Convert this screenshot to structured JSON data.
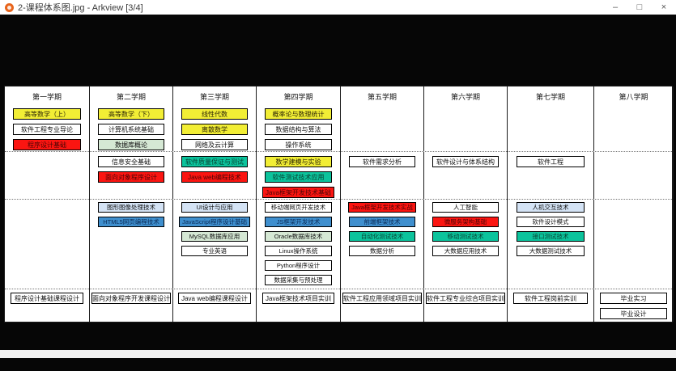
{
  "window": {
    "title": "2-课程体系图.jpg - Arkview [3/4]",
    "minimize_glyph": "–",
    "maximize_glyph": "□",
    "close_glyph": "×"
  },
  "colors": {
    "app_icon": "#e8641b",
    "yellow": "#f2ee35",
    "red": "#fb1511",
    "teal": "#0cc39c",
    "blue": "#3f8fce",
    "pale_green": "#d5e8d4",
    "pale_blue": "#d4e3f5",
    "white": "#ffffff"
  },
  "diagram": {
    "columns": [
      {
        "header": "第一学期",
        "sections": [
          [
            {
              "label": "高等数学（上）",
              "color": "yellow"
            },
            {
              "label": "软件工程专业导论",
              "color": "white"
            },
            {
              "label": "程序设计基础",
              "color": "red"
            }
          ],
          [],
          [],
          [
            {
              "label": "程序设计基础课程设计",
              "color": "white"
            }
          ]
        ]
      },
      {
        "header": "第二学期",
        "sections": [
          [
            {
              "label": "高等数学（下）",
              "color": "yellow"
            },
            {
              "label": "计算机系统基础",
              "color": "white"
            },
            {
              "label": "数据库概论",
              "color": "pale_green"
            }
          ],
          [
            {
              "label": "信息安全基础",
              "color": "white"
            },
            {
              "label": "面向对象程序设计",
              "color": "red"
            }
          ],
          [
            {
              "label": "图形图像处理技术",
              "color": "pale_blue"
            },
            {
              "label": "HTML5网页编程技术",
              "color": "blue"
            }
          ],
          [
            {
              "label": "面向对象程序开发课程设计",
              "color": "white"
            }
          ]
        ]
      },
      {
        "header": "第三学期",
        "sections": [
          [
            {
              "label": "线性代数",
              "color": "yellow"
            },
            {
              "label": "离散数学",
              "color": "yellow"
            },
            {
              "label": "网络及云计算",
              "color": "white"
            }
          ],
          [
            {
              "label": "软件质量保证与测试",
              "color": "teal"
            },
            {
              "label": "Java web编程技术",
              "color": "red"
            }
          ],
          [
            {
              "label": "UI设计与应用",
              "color": "pale_blue"
            },
            {
              "label": "JavaScript程序设计基础",
              "color": "blue"
            },
            {
              "label": "MySQL数据库应用",
              "color": "pale_green"
            },
            {
              "label": "专业英语",
              "color": "white"
            }
          ],
          [
            {
              "label": "Java web编程课程设计",
              "color": "white"
            }
          ]
        ]
      },
      {
        "header": "第四学期",
        "sections": [
          [
            {
              "label": "概率论与数理统计",
              "color": "yellow"
            },
            {
              "label": "数据结构与算法",
              "color": "white"
            },
            {
              "label": "操作系统",
              "color": "white"
            }
          ],
          [
            {
              "label": "数学建模与实验",
              "color": "yellow"
            },
            {
              "label": "软件测试技术应用",
              "color": "teal"
            },
            {
              "label": "Java框架开发技术基础",
              "color": "red"
            }
          ],
          [
            {
              "label": "移动端网页开发技术",
              "color": "white"
            },
            {
              "label": "JS框架开发技术",
              "color": "blue"
            },
            {
              "label": "Oracle数据库技术",
              "color": "pale_green"
            },
            {
              "label": "Linux操作系统",
              "color": "white"
            },
            {
              "label": "Python程序设计",
              "color": "white"
            },
            {
              "label": "数据采集与预处理",
              "color": "white"
            }
          ],
          [
            {
              "label": "Java框架技术项目实训",
              "color": "white"
            }
          ]
        ]
      },
      {
        "header": "第五学期",
        "sections": [
          [],
          [
            {
              "label": "软件需求分析",
              "color": "white"
            }
          ],
          [
            {
              "label": "Java框架开发技术实战",
              "color": "red"
            },
            {
              "label": "前端框架技术",
              "color": "blue"
            },
            {
              "label": "自动化测试技术",
              "color": "teal"
            },
            {
              "label": "数据分析",
              "color": "white"
            }
          ],
          [
            {
              "label": "软件工程应用领域项目实训",
              "color": "white"
            }
          ]
        ]
      },
      {
        "header": "第六学期",
        "sections": [
          [],
          [
            {
              "label": "软件设计与体系结构",
              "color": "white"
            }
          ],
          [
            {
              "label": "人工智能",
              "color": "white"
            },
            {
              "label": "微服务架构基础",
              "color": "red"
            },
            {
              "label": "移动测试技术",
              "color": "teal"
            },
            {
              "label": "大数据应用技术",
              "color": "white"
            }
          ],
          [
            {
              "label": "软件工程专业综合项目实训",
              "color": "white"
            }
          ]
        ]
      },
      {
        "header": "第七学期",
        "sections": [
          [],
          [
            {
              "label": "软件工程",
              "color": "white"
            }
          ],
          [
            {
              "label": "人机交互技术",
              "color": "pale_blue"
            },
            {
              "label": "软件设计模式",
              "color": "white"
            },
            {
              "label": "接口测试技术",
              "color": "teal"
            },
            {
              "label": "大数据测试技术",
              "color": "white"
            }
          ],
          [
            {
              "label": "软件工程岗前实训",
              "color": "white"
            }
          ]
        ]
      },
      {
        "header": "第八学期",
        "sections": [
          [],
          [],
          [],
          [
            {
              "label": "毕业实习",
              "color": "white"
            },
            {
              "label": "毕业设计",
              "color": "white"
            }
          ]
        ]
      }
    ]
  }
}
